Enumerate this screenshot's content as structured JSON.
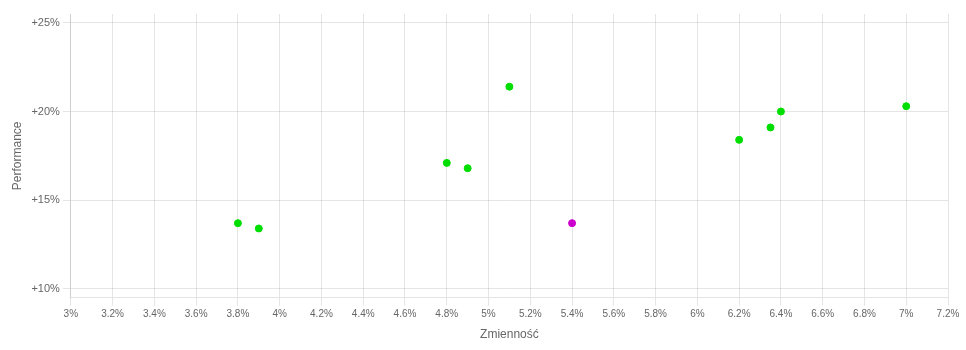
{
  "chart_data": {
    "type": "scatter",
    "xlabel": "Zmienność",
    "ylabel": "Performance",
    "series": [
      {
        "color": "#00dd00",
        "x": [
          0.038,
          0.039,
          0.048,
          0.049,
          0.051,
          0.062,
          0.0635,
          0.064,
          0.07
        ],
        "values": [
          0.137,
          0.134,
          0.171,
          0.168,
          0.214,
          0.184,
          0.191,
          0.2,
          0.203
        ]
      },
      {
        "color": "#cc00cc",
        "x": [
          0.054
        ],
        "values": [
          0.137
        ]
      }
    ],
    "xlim": [
      0.03,
      0.072
    ],
    "ylim": [
      0.095,
      0.255
    ],
    "xticks": [
      {
        "value": 0.03,
        "label": "3%"
      },
      {
        "value": 0.032,
        "label": "3.2%"
      },
      {
        "value": 0.034,
        "label": "3.4%"
      },
      {
        "value": 0.036,
        "label": "3.6%"
      },
      {
        "value": 0.038,
        "label": "3.8%"
      },
      {
        "value": 0.04,
        "label": "4%"
      },
      {
        "value": 0.042,
        "label": "4.2%"
      },
      {
        "value": 0.044,
        "label": "4.4%"
      },
      {
        "value": 0.046,
        "label": "4.6%"
      },
      {
        "value": 0.048,
        "label": "4.8%"
      },
      {
        "value": 0.05,
        "label": "5%"
      },
      {
        "value": 0.052,
        "label": "5.2%"
      },
      {
        "value": 0.054,
        "label": "5.4%"
      },
      {
        "value": 0.056,
        "label": "5.6%"
      },
      {
        "value": 0.058,
        "label": "5.8%"
      },
      {
        "value": 0.06,
        "label": "6%"
      },
      {
        "value": 0.062,
        "label": "6.2%"
      },
      {
        "value": 0.064,
        "label": "6.4%"
      },
      {
        "value": 0.066,
        "label": "6.6%"
      },
      {
        "value": 0.068,
        "label": "6.8%"
      },
      {
        "value": 0.07,
        "label": "7%"
      },
      {
        "value": 0.072,
        "label": "7.2%"
      }
    ],
    "yticks": [
      {
        "value": 0.1,
        "label": "+10%"
      },
      {
        "value": 0.15,
        "label": "+15%"
      },
      {
        "value": 0.2,
        "label": "+20%"
      },
      {
        "value": 0.25,
        "label": "+25%"
      }
    ],
    "grid": true
  }
}
